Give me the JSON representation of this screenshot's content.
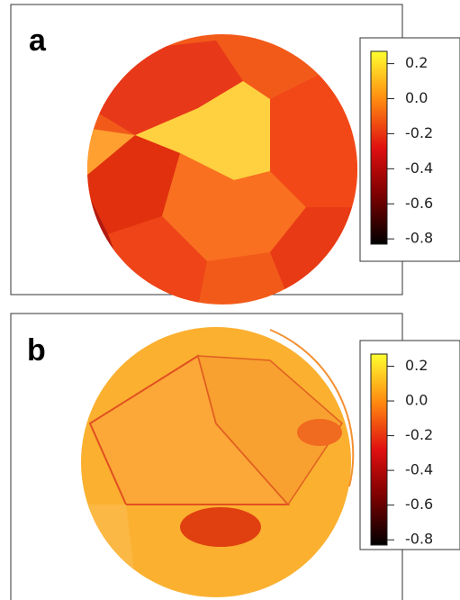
{
  "panels": [
    {
      "label": "a",
      "colorbar": {
        "lim": [
          -0.83,
          0.27
        ],
        "ticks": [
          0.2,
          {
            "value": 0,
            "label": "0.0"
          },
          -0.2,
          -0.4,
          -0.6,
          -0.8
        ]
      }
    },
    {
      "label": "b",
      "colorbar": {
        "lim": [
          -0.83,
          0.27
        ],
        "ticks": [
          0.2,
          {
            "value": 0,
            "label": "0.0"
          },
          -0.2,
          -0.4,
          -0.6,
          -0.8
        ]
      }
    }
  ]
}
